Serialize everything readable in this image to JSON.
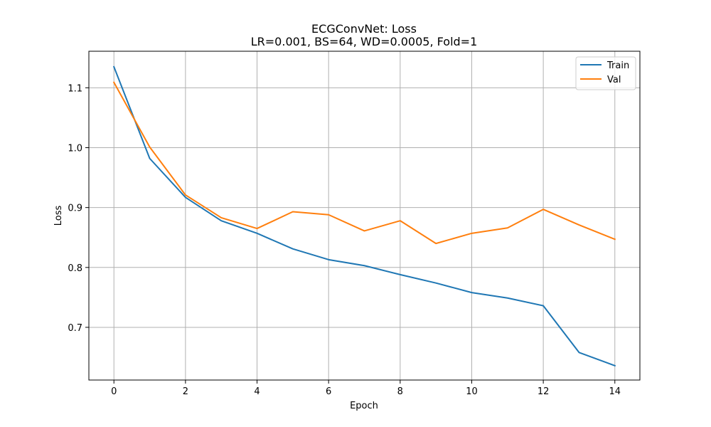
{
  "chart_data": {
    "type": "line",
    "title": "ECGConvNet: Loss",
    "subtitle": "LR=0.001, BS=64, WD=0.0005, Fold=1",
    "xlabel": "Epoch",
    "ylabel": "Loss",
    "xlim": [
      -0.7,
      14.7
    ],
    "ylim": [
      0.612,
      1.161
    ],
    "x_ticks": [
      0,
      2,
      4,
      6,
      8,
      10,
      12,
      14
    ],
    "y_ticks": [
      0.7,
      0.8,
      0.9,
      1.0,
      1.1
    ],
    "y_tick_labels": [
      "0.7",
      "0.8",
      "0.9",
      "1.0",
      "1.1"
    ],
    "grid": true,
    "legend_position": "top-right",
    "x": [
      0,
      1,
      2,
      3,
      4,
      5,
      6,
      7,
      8,
      9,
      10,
      11,
      12,
      13,
      14
    ],
    "series": [
      {
        "name": "Train",
        "color": "#1f77b4",
        "values": [
          1.135,
          0.982,
          0.917,
          0.878,
          0.857,
          0.831,
          0.813,
          0.803,
          0.788,
          0.774,
          0.758,
          0.749,
          0.736,
          0.658,
          0.636
        ]
      },
      {
        "name": "Val",
        "color": "#ff7f0e",
        "values": [
          1.109,
          1.001,
          0.921,
          0.883,
          0.865,
          0.893,
          0.888,
          0.861,
          0.878,
          0.84,
          0.857,
          0.866,
          0.897,
          0.871,
          0.847
        ]
      }
    ]
  }
}
